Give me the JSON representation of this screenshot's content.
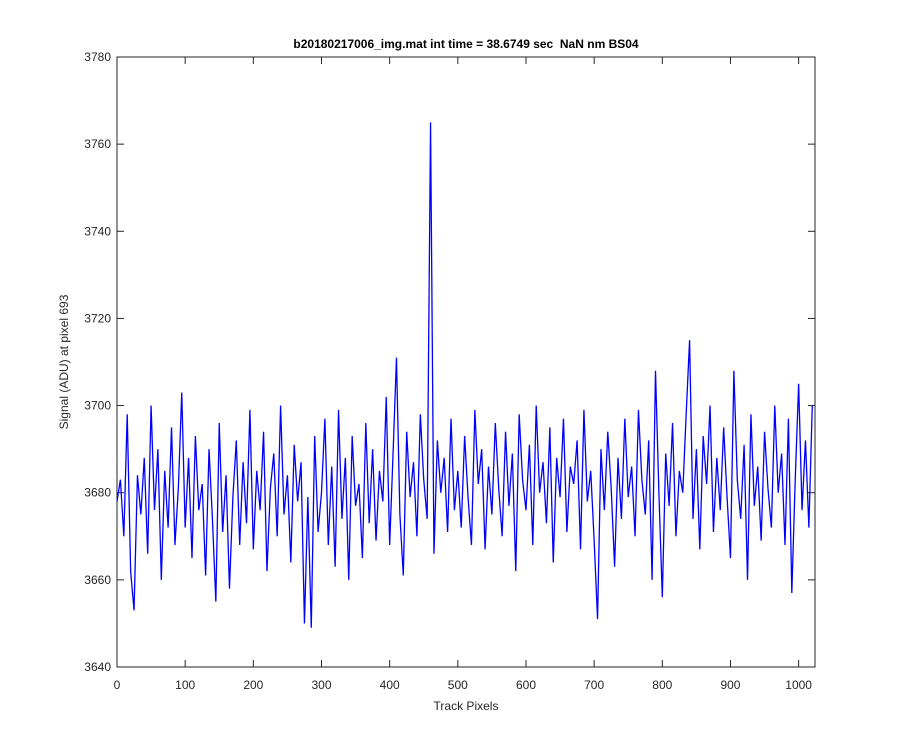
{
  "chart_data": {
    "type": "line",
    "title": "b20180217006_img.mat int time = 38.6749 sec  NaN nm BS04",
    "xlabel": "Track Pixels",
    "ylabel": "Signal (ADU) at pixel 693",
    "xlim": [
      0,
      1024
    ],
    "ylim": [
      3640,
      3780
    ],
    "xticks": [
      0,
      100,
      200,
      300,
      400,
      500,
      600,
      700,
      800,
      900,
      1000
    ],
    "yticks": [
      3640,
      3660,
      3680,
      3700,
      3720,
      3740,
      3760,
      3780
    ],
    "x": [
      0,
      5,
      10,
      15,
      20,
      25,
      30,
      35,
      40,
      45,
      50,
      55,
      60,
      65,
      70,
      75,
      80,
      85,
      90,
      95,
      100,
      105,
      110,
      115,
      120,
      125,
      130,
      135,
      140,
      145,
      150,
      155,
      160,
      165,
      170,
      175,
      180,
      185,
      190,
      195,
      200,
      205,
      210,
      215,
      220,
      225,
      230,
      235,
      240,
      245,
      250,
      255,
      260,
      265,
      270,
      275,
      280,
      285,
      290,
      295,
      300,
      305,
      310,
      315,
      320,
      325,
      330,
      335,
      340,
      345,
      350,
      355,
      360,
      365,
      370,
      375,
      380,
      385,
      390,
      395,
      400,
      405,
      410,
      415,
      420,
      425,
      430,
      435,
      440,
      445,
      450,
      455,
      460,
      465,
      470,
      475,
      480,
      485,
      490,
      495,
      500,
      505,
      510,
      515,
      520,
      525,
      530,
      535,
      540,
      545,
      550,
      555,
      560,
      565,
      570,
      575,
      580,
      585,
      590,
      595,
      600,
      605,
      610,
      615,
      620,
      625,
      630,
      635,
      640,
      645,
      650,
      655,
      660,
      665,
      670,
      675,
      680,
      685,
      690,
      695,
      700,
      705,
      710,
      715,
      720,
      725,
      730,
      735,
      740,
      745,
      750,
      755,
      760,
      765,
      770,
      775,
      780,
      785,
      790,
      795,
      800,
      805,
      810,
      815,
      820,
      825,
      830,
      835,
      840,
      845,
      850,
      855,
      860,
      865,
      870,
      875,
      880,
      885,
      890,
      895,
      900,
      905,
      910,
      915,
      920,
      925,
      930,
      935,
      940,
      945,
      950,
      955,
      960,
      965,
      970,
      975,
      980,
      985,
      990,
      995,
      1000,
      1005,
      1010,
      1015,
      1020
    ],
    "series": [
      {
        "color": "#0000ff",
        "values": [
          3678,
          3683,
          3670,
          3698,
          3662,
          3653,
          3684,
          3675,
          3688,
          3666,
          3700,
          3676,
          3690,
          3660,
          3685,
          3672,
          3695,
          3668,
          3681,
          3703,
          3672,
          3688,
          3665,
          3693,
          3676,
          3682,
          3661,
          3690,
          3674,
          3655,
          3696,
          3671,
          3684,
          3658,
          3679,
          3692,
          3668,
          3687,
          3673,
          3699,
          3667,
          3685,
          3676,
          3694,
          3662,
          3681,
          3689,
          3670,
          3700,
          3675,
          3684,
          3664,
          3691,
          3678,
          3687,
          3650,
          3679,
          3649,
          3693,
          3671,
          3680,
          3697,
          3668,
          3686,
          3663,
          3699,
          3674,
          3688,
          3660,
          3693,
          3677,
          3682,
          3665,
          3696,
          3673,
          3690,
          3669,
          3685,
          3678,
          3702,
          3668,
          3689,
          3711,
          3675,
          3661,
          3694,
          3679,
          3687,
          3670,
          3698,
          3683,
          3674,
          3765,
          3666,
          3692,
          3680,
          3688,
          3671,
          3697,
          3676,
          3685,
          3672,
          3693,
          3679,
          3668,
          3699,
          3682,
          3690,
          3667,
          3686,
          3675,
          3696,
          3681,
          3670,
          3694,
          3677,
          3689,
          3662,
          3698,
          3683,
          3676,
          3691,
          3668,
          3700,
          3680,
          3687,
          3673,
          3695,
          3664,
          3688,
          3679,
          3697,
          3671,
          3686,
          3682,
          3692,
          3667,
          3699,
          3678,
          3685,
          3669,
          3651,
          3690,
          3676,
          3694,
          3681,
          3663,
          3688,
          3674,
          3697,
          3679,
          3686,
          3670,
          3699,
          3683,
          3675,
          3692,
          3660,
          3708,
          3680,
          3656,
          3689,
          3677,
          3696,
          3670,
          3685,
          3680,
          3698,
          3715,
          3674,
          3690,
          3667,
          3693,
          3682,
          3700,
          3671,
          3688,
          3676,
          3695,
          3679,
          3665,
          3708,
          3683,
          3674,
          3691,
          3660,
          3698,
          3677,
          3686,
          3669,
          3694,
          3681,
          3672,
          3700,
          3680,
          3689,
          3668,
          3697,
          3657,
          3683,
          3705,
          3676,
          3692,
          3672,
          3700
        ]
      }
    ]
  }
}
